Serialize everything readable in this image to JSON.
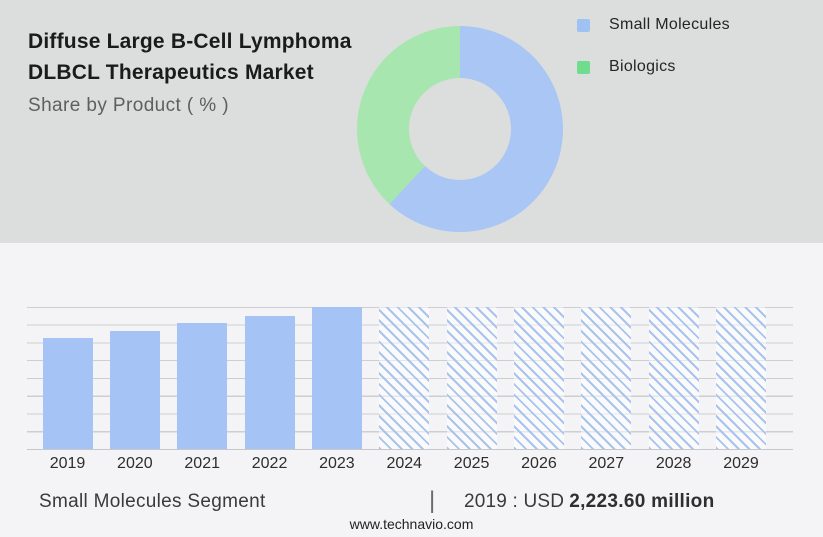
{
  "colors": {
    "top_background": "#dcdddd",
    "bottom_background": "#f4f4f6",
    "donut_blue": "#a9c6f4",
    "donut_green": "#a8e6b0",
    "legend_blue": "#9fc2f3",
    "legend_green": "#6fdc8e",
    "bar_blue": "#a6c3f6",
    "hatch_blue": "#a9c3ef"
  },
  "header": {
    "title_line1": "Diffuse Large B-Cell Lymphoma",
    "title_line2": "DLBCL Therapeutics Market",
    "subtitle": "Share by Product ( % )"
  },
  "legend": {
    "items": [
      {
        "label": "Small Molecules",
        "color": "#9fc2f3"
      },
      {
        "label": "Biologics",
        "color": "#6fdc8e"
      }
    ]
  },
  "chart_data": [
    {
      "type": "pie",
      "subtype": "donut",
      "title": "Share by Product ( % )",
      "labels": [
        "Small Molecules",
        "Biologics"
      ],
      "values_percent": [
        62,
        38
      ],
      "colors": [
        "#a9c6f4",
        "#a8e6b0"
      ],
      "start_angle_deg": 0,
      "direction": "clockwise",
      "inner_radius_ratio": 0.49,
      "legend_position": "top-right"
    },
    {
      "type": "bar",
      "title": "Small Molecules Segment",
      "categories": [
        "2019",
        "2020",
        "2021",
        "2022",
        "2023",
        "2024",
        "2025",
        "2026",
        "2027",
        "2028",
        "2029"
      ],
      "series": [
        {
          "name": "Small Molecules Segment",
          "values_relative": [
            0.78,
            0.83,
            0.89,
            0.94,
            1.0,
            1.0,
            1.0,
            1.0,
            1.0,
            1.0,
            1.0
          ]
        }
      ],
      "bar_styles": [
        "solid",
        "solid",
        "solid",
        "solid",
        "solid",
        "hatched",
        "hatched",
        "hatched",
        "hatched",
        "hatched",
        "hatched"
      ],
      "solid_color": "#a6c3f6",
      "hatch_color": "#a9c3ef",
      "labeled_values": {
        "2019": "USD 2,223.60 million"
      },
      "xlabel": "",
      "ylabel": "",
      "y_axis_labels_visible": false,
      "gridlines_horizontal": 9,
      "grid": true
    }
  ],
  "footer": {
    "segment_label": "Small Molecules Segment",
    "separator": "|",
    "value_prefix": "2019 : USD",
    "value_bold": "2,223.60 million",
    "website": "www.technavio.com"
  }
}
